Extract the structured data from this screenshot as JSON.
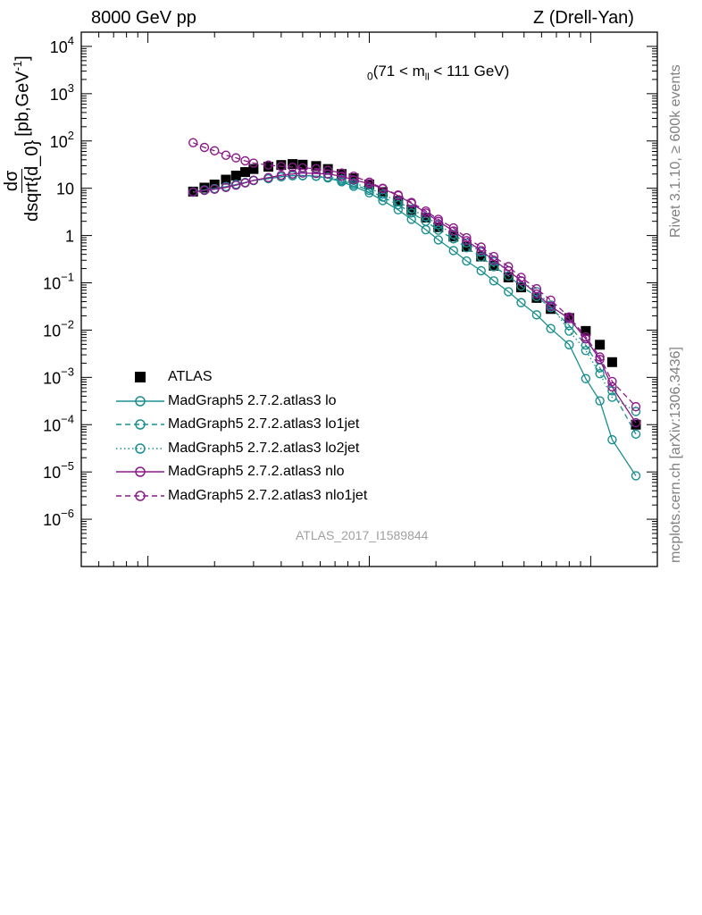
{
  "header": {
    "left": "8000 GeV pp",
    "right": "Z (Drell-Yan)",
    "right_side_top": "Rivet 3.1.10, ≥ 600k events",
    "right_side_bottom": "mcplots.cern.ch [arXiv:1306.3436]"
  },
  "colors": {
    "data": "#000000",
    "teal": "#1a8f8f",
    "purple": "#8a1a8a",
    "axis": "#000000",
    "watermark": "#a0a0a0",
    "side_text": "#808080"
  },
  "chart_data": {
    "type": "scatter",
    "title": "",
    "annotation": {
      "sub": "0",
      "text_a": "(71 < m",
      "text_sub": "ll",
      "text_b": " < 111 GeV)"
    },
    "ylabel": {
      "num": "dσ",
      "den": "dsqrt{d_0}",
      "units_a": " [pb,GeV",
      "units_sup": "-1",
      "units_b": "]"
    },
    "xlabel": "",
    "watermark": "ATLAS_2017_I1589844",
    "yscale": "log",
    "xscale": "log",
    "ylim": [
      1e-07,
      20000
    ],
    "xlim": [
      0.5,
      200
    ],
    "ytick_labels": [
      {
        "v": 10000.0,
        "base": "10",
        "exp": "4"
      },
      {
        "v": 1000.0,
        "base": "10",
        "exp": "3"
      },
      {
        "v": 100.0,
        "base": "10",
        "exp": "2"
      },
      {
        "v": 10,
        "base": "10",
        "exp": ""
      },
      {
        "v": 1,
        "base": "1",
        "exp": ""
      },
      {
        "v": 0.1,
        "base": "10",
        "exp": "−1"
      },
      {
        "v": 0.01,
        "base": "10",
        "exp": "−2"
      },
      {
        "v": 0.001,
        "base": "10",
        "exp": "−3"
      },
      {
        "v": 0.0001,
        "base": "10",
        "exp": "−4"
      },
      {
        "v": 1e-05,
        "base": "10",
        "exp": "−5"
      },
      {
        "v": 1e-06,
        "base": "10",
        "exp": "−6"
      }
    ],
    "x": [
      1.6,
      1.8,
      2.0,
      2.25,
      2.5,
      2.75,
      3.0,
      3.5,
      4.0,
      4.5,
      5.0,
      5.75,
      6.5,
      7.5,
      8.5,
      10.0,
      11.5,
      13.5,
      15.5,
      18.0,
      20.5,
      24.0,
      27.5,
      32.0,
      36.5,
      42.5,
      48.5,
      57.0,
      66.0,
      80.0,
      95.0,
      110.0,
      125.0,
      160.0
    ],
    "series": [
      {
        "name": "ATLAS",
        "style": "data",
        "values": [
          8.5,
          10.3,
          12.0,
          15.2,
          18.5,
          22.0,
          25.5,
          28.5,
          31.0,
          32.5,
          31.5,
          29.5,
          25.5,
          20.0,
          16.2,
          12.0,
          8.3,
          5.4,
          3.5,
          2.4,
          1.5,
          0.95,
          0.58,
          0.36,
          0.23,
          0.13,
          0.08,
          0.048,
          0.028,
          0.018,
          0.0096,
          0.0049,
          0.0021,
          0.0001
        ]
      },
      {
        "name": "MadGraph5 2.7.2.atlas3 lo",
        "style": "solid",
        "color": "teal",
        "x": [
          1.6,
          1.8,
          2.0,
          2.25,
          2.5,
          2.75,
          3.0,
          3.5,
          4.0,
          4.5,
          5.0,
          5.75,
          6.5,
          7.5,
          8.5,
          10.0,
          11.5,
          13.5,
          15.5,
          18.0,
          20.5,
          24.0,
          27.5,
          32.0,
          36.5,
          42.5,
          48.5,
          57.0,
          66.0,
          80.0,
          95.0,
          110.0,
          125.0,
          160.0
        ],
        "values": [
          8.3,
          9.2,
          9.8,
          10.8,
          12.0,
          13.2,
          14.6,
          16.0,
          17.5,
          18.5,
          18.5,
          18.0,
          16.5,
          13.7,
          11.0,
          8.0,
          5.5,
          3.5,
          2.2,
          1.33,
          0.81,
          0.48,
          0.29,
          0.18,
          0.11,
          0.065,
          0.038,
          0.021,
          0.0108,
          0.0049,
          0.00094,
          0.00032,
          4.8e-05,
          8.3e-06
        ]
      },
      {
        "name": "MadGraph5 2.7.2.atlas3 lo1jet",
        "style": "dashed",
        "color": "teal",
        "x": [
          1.6,
          1.8,
          2.0,
          2.25,
          2.5,
          2.75,
          3.0,
          3.5,
          4.0,
          4.5,
          5.0,
          5.75,
          6.5,
          7.5,
          8.5,
          10.0,
          11.5,
          13.5,
          15.5,
          18.0,
          20.5,
          24.0,
          27.5,
          32.0,
          36.5,
          42.5,
          48.5,
          57.0,
          66.0,
          80.0,
          95.0,
          110.0,
          125.0,
          160.0
        ],
        "values": [
          8.3,
          9.2,
          9.8,
          10.8,
          12.0,
          13.2,
          14.6,
          16.0,
          17.5,
          18.5,
          18.5,
          18.0,
          16.8,
          14.5,
          12.0,
          9.0,
          6.5,
          4.5,
          3.0,
          2.0,
          1.3,
          0.85,
          0.55,
          0.35,
          0.22,
          0.14,
          0.085,
          0.051,
          0.03,
          0.0125,
          0.0048,
          0.0016,
          0.00052,
          6.3e-05
        ]
      },
      {
        "name": "MadGraph5 2.7.2.atlas3 lo2jet",
        "style": "dotted",
        "color": "teal",
        "x": [
          1.6,
          1.8,
          2.0,
          2.25,
          2.5,
          2.75,
          3.0,
          3.5,
          4.0,
          4.5,
          5.0,
          5.75,
          6.5,
          7.5,
          8.5,
          10.0,
          11.5,
          13.5,
          15.5,
          18.0,
          20.5,
          24.0,
          27.5,
          32.0,
          36.5,
          42.5,
          48.5,
          57.0,
          66.0,
          80.0,
          95.0,
          110.0,
          125.0,
          160.0
        ],
        "values": [
          8.3,
          9.2,
          9.8,
          10.8,
          12.0,
          13.2,
          14.6,
          16.0,
          17.5,
          18.5,
          18.5,
          18.0,
          17.2,
          15.5,
          13.0,
          10.0,
          7.5,
          5.2,
          3.6,
          2.5,
          1.7,
          1.05,
          0.7,
          0.45,
          0.28,
          0.18,
          0.11,
          0.065,
          0.034,
          0.0095,
          0.0037,
          0.0012,
          0.00038,
          0.00019
        ]
      },
      {
        "name": "MadGraph5 2.7.2.atlas3 nlo",
        "style": "solid",
        "color": "purple",
        "x": [
          1.6,
          1.8,
          2.0,
          2.25,
          2.5,
          2.75,
          3.0,
          3.5,
          4.0,
          4.5,
          5.0,
          5.75,
          6.5,
          7.5,
          8.5,
          10.0,
          11.5,
          13.5,
          15.5,
          18.0,
          20.5,
          24.0,
          27.5,
          32.0,
          36.5,
          42.5,
          48.5,
          57.0,
          66.0,
          80.0,
          95.0,
          110.0,
          125.0,
          160.0
        ],
        "values": [
          8.3,
          9.0,
          9.5,
          10.4,
          11.6,
          13.0,
          14.8,
          16.8,
          18.8,
          20.0,
          21.0,
          20.5,
          20.0,
          18.0,
          15.0,
          12.5,
          9.8,
          7.0,
          4.8,
          3.0,
          2.0,
          1.25,
          0.78,
          0.48,
          0.3,
          0.18,
          0.11,
          0.058,
          0.032,
          0.0175,
          0.0065,
          0.0024,
          0.00063,
          0.00011
        ]
      },
      {
        "name": "MadGraph5 2.7.2.atlas3 nlo1jet",
        "style": "dashed",
        "color": "purple",
        "x": [
          1.6,
          1.8,
          2.0,
          2.25,
          2.5,
          2.75,
          3.0,
          3.5,
          4.0,
          4.5,
          5.0,
          5.75,
          6.5,
          7.5,
          8.5,
          10.0,
          11.5,
          13.5,
          15.5,
          18.0,
          20.5,
          24.0,
          27.5,
          32.0,
          36.5,
          42.5,
          48.5,
          57.0,
          66.0,
          80.0,
          95.0,
          110.0,
          125.0,
          160.0
        ],
        "values": [
          92,
          73,
          62,
          50,
          44,
          38,
          34,
          31,
          29,
          28,
          27,
          26,
          24,
          21,
          18,
          13.5,
          10.0,
          7.2,
          5.0,
          3.3,
          2.2,
          1.45,
          0.9,
          0.57,
          0.36,
          0.22,
          0.13,
          0.075,
          0.043,
          0.019,
          0.0072,
          0.0027,
          0.00082,
          0.00024
        ]
      }
    ]
  }
}
